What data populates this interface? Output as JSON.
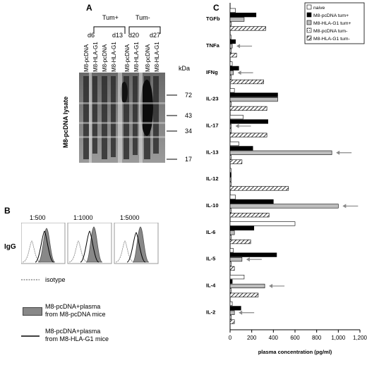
{
  "panelA": {
    "label": "A",
    "groups": [
      "Tum+",
      "Tum-"
    ],
    "days": [
      "d6",
      "d13",
      "d20",
      "d27"
    ],
    "lanes": [
      "M8-pcDNA",
      "M8-HLA-G1",
      "M8-pcDNA",
      "M8-HLA-G1",
      "M8-pcDNA",
      "M8-HLA-G1",
      "M8-pcDNA",
      "M8-HLA-G1"
    ],
    "side_label": "M8-pcDNA lysate",
    "unit": "kDa",
    "markers": [
      "72",
      "43",
      "34",
      "17"
    ]
  },
  "panelB": {
    "label": "B",
    "row_label": "IgG",
    "dilutions": [
      "1:500",
      "1:1000",
      "1:5000"
    ],
    "legend": {
      "isotype": "isotype",
      "grey_line1": "M8-pcDNA+plasma",
      "grey_line2": "from M8-pcDNA mice",
      "black_line1": "M8-pcDNA+plasma",
      "black_line2": "from M8-HLA-G1 mice"
    }
  },
  "panelC": {
    "label": "C",
    "legend": [
      "naive",
      "M8-pcDNA tum+",
      "M8-HLA-G1 tum+",
      "M8-pcDNA tum-",
      "M8-HLA-G1 tum-"
    ],
    "colors": {
      "naive": "#ffffff",
      "pcdna_pos": "#000000",
      "hla_pos": "#bdbdbd",
      "pcdna_neg": "#ffffff",
      "hla_neg": "#ffffff"
    },
    "chart_data": {
      "type": "bar",
      "orientation": "horizontal",
      "categories": [
        "TGFb",
        "TNFa",
        "IFNg",
        "IL-23",
        "IL-17",
        "IL-13",
        "IL-12",
        "IL-10",
        "IL-6",
        "IL-5",
        "IL-4",
        "IL-2"
      ],
      "series": [
        {
          "name": "naive",
          "values": [
            50,
            10,
            20,
            40,
            120,
            80,
            10,
            50,
            600,
            30,
            130,
            20
          ]
        },
        {
          "name": "M8-pcDNA tum+",
          "values": [
            240,
            50,
            80,
            440,
            350,
            210,
            10,
            400,
            220,
            430,
            20,
            100
          ]
        },
        {
          "name": "M8-HLA-G1 tum+",
          "values": [
            130,
            20,
            30,
            440,
            10,
            940,
            10,
            1000,
            40,
            110,
            320,
            40
          ]
        },
        {
          "name": "M8-pcDNA tum-",
          "values": [
            10,
            10,
            10,
            10,
            10,
            10,
            10,
            10,
            10,
            10,
            10,
            10
          ]
        },
        {
          "name": "M8-HLA-G1 tum-",
          "values": [
            330,
            60,
            310,
            340,
            340,
            110,
            540,
            360,
            190,
            40,
            260,
            40
          ]
        }
      ],
      "arrows": [
        "TNFa",
        "IFNg",
        "IL-17",
        "IL-13",
        "IL-10",
        "IL-5",
        "IL-4",
        "IL-2"
      ],
      "xlim": [
        0,
        1200
      ],
      "xticks": [
        "0",
        "200",
        "400",
        "600",
        "800",
        "1,000",
        "1,200"
      ],
      "xlabel": "plasma concentration (pg/ml)"
    }
  }
}
